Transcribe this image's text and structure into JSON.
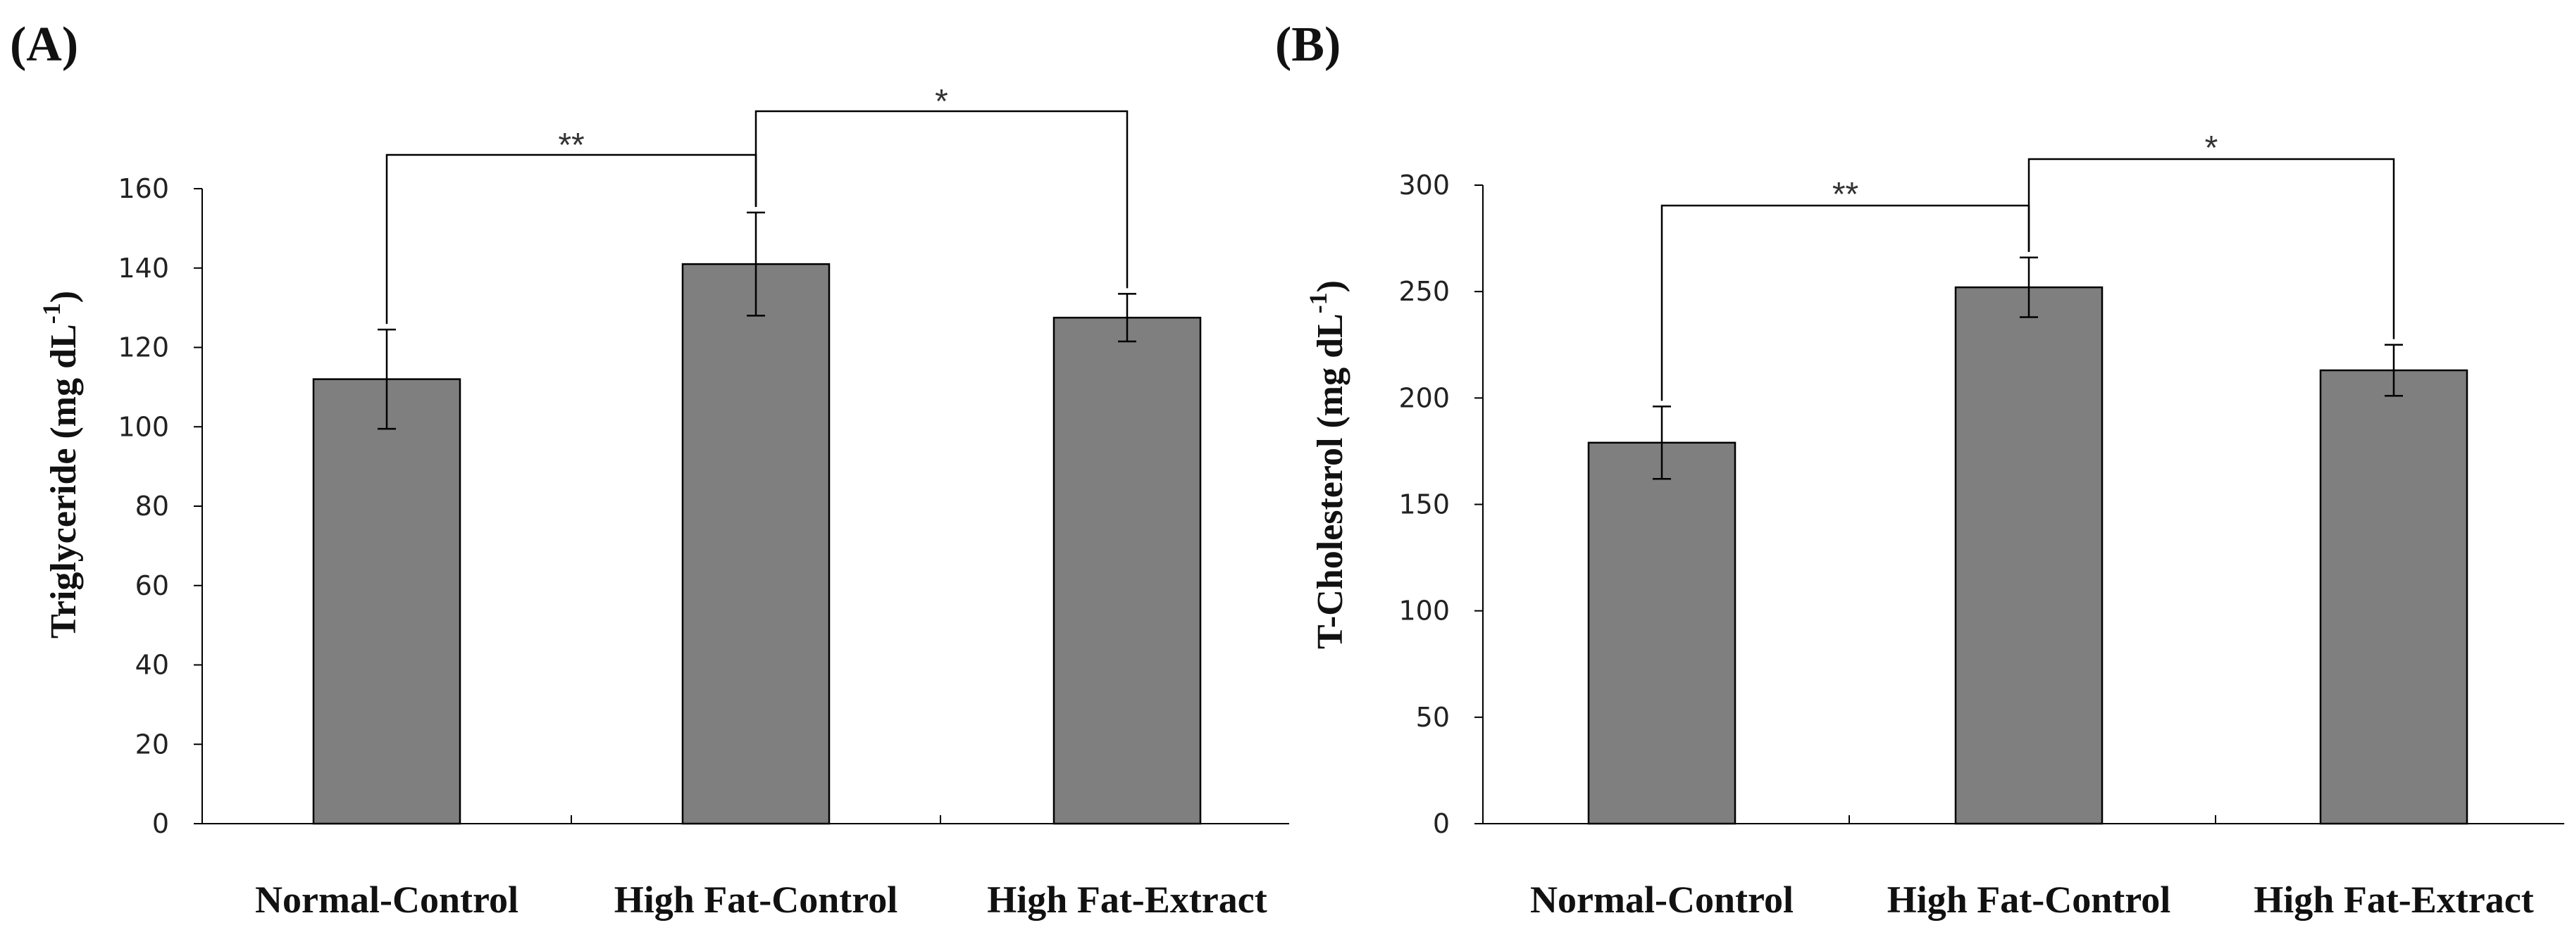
{
  "chart_data": [
    {
      "type": "bar",
      "panel_label": "(A)",
      "categories": [
        "Normal-Control",
        "High Fat-Control",
        "High Fat-Extract"
      ],
      "values": [
        112,
        141,
        127.5
      ],
      "errors": [
        12.5,
        13,
        6
      ],
      "ylabel": "Triglyceride (mg dL",
      "ylabel_exponent": "-1",
      "ylabel_suffix": ")",
      "ylim": [
        0,
        160
      ],
      "yticks": [
        "0",
        "20",
        "40",
        "60",
        "80",
        "100",
        "120",
        "140",
        "160"
      ],
      "significance": [
        {
          "from": 0,
          "to": 1,
          "label": "**"
        },
        {
          "from": 1,
          "to": 2,
          "label": "*"
        }
      ]
    },
    {
      "type": "bar",
      "panel_label": "(B)",
      "categories": [
        "Normal-Control",
        "High Fat-Control",
        "High Fat-Extract"
      ],
      "values": [
        179,
        252,
        213
      ],
      "errors": [
        17,
        14,
        12
      ],
      "ylabel": "T-Cholesterol (mg dL",
      "ylabel_exponent": "-1",
      "ylabel_suffix": ")",
      "ylim": [
        0,
        300
      ],
      "yticks": [
        "0",
        "50",
        "100",
        "150",
        "200",
        "250",
        "300"
      ],
      "significance": [
        {
          "from": 0,
          "to": 1,
          "label": "**"
        },
        {
          "from": 1,
          "to": 2,
          "label": "*"
        }
      ]
    }
  ]
}
